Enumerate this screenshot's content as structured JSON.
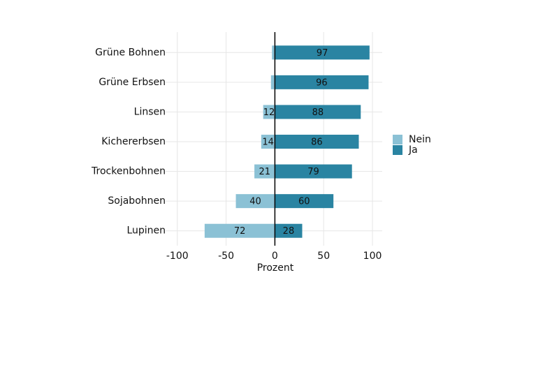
{
  "chart_data": {
    "type": "bar",
    "orientation": "horizontal",
    "stacked": true,
    "categories": [
      "Grüne Bohnen",
      "Grüne Erbsen",
      "Linsen",
      "Kichererbsen",
      "Trockenbohnen",
      "Sojabohnen",
      "Lupinen"
    ],
    "series": [
      {
        "name": "Nein",
        "color": "#8bc1d5",
        "values": [
          -3,
          -4,
          -12,
          -14,
          -21,
          -40,
          -72
        ],
        "value_labels": [
          null,
          null,
          "12",
          "14",
          "21",
          "40",
          "72"
        ]
      },
      {
        "name": "Ja",
        "color": "#2a84a2",
        "values": [
          97,
          96,
          88,
          86,
          79,
          60,
          28
        ]
      }
    ],
    "xlabel": "Prozent",
    "xlim": [
      -112,
      110
    ],
    "xticks": [
      -100,
      -50,
      0,
      50,
      100
    ],
    "grid": true,
    "legend": "right"
  }
}
